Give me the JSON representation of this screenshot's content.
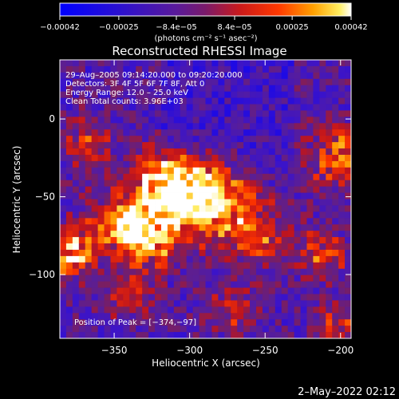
{
  "chart_data": {
    "type": "heatmap",
    "title": "Reconstructed RHESSI Image",
    "xlabel": "Heliocentric X (arcsec)",
    "ylabel": "Heliocentric Y (arcsec)",
    "xlim": [
      -386,
      -193
    ],
    "ylim": [
      -141,
      38
    ],
    "xticks": [
      -350,
      -300,
      -250,
      -200
    ],
    "yticks": [
      0,
      -50,
      -100
    ],
    "xtick_labels": [
      "−350",
      "−300",
      "−250",
      "−200"
    ],
    "ytick_labels": [
      "0",
      "−50",
      "−100"
    ],
    "colorbar": {
      "range": [
        -0.00042,
        0.00042
      ],
      "ticks": [
        -0.00042,
        -0.00025,
        -8.4e-05,
        8.4e-05,
        0.00025,
        0.00042
      ],
      "tick_labels": [
        "−0.00042",
        "−0.00025",
        "−8.4e−05",
        "8.4e−05",
        "0.00025",
        "0.00042"
      ],
      "unit_label": "(photons cm⁻² s⁻¹ asec⁻²)"
    },
    "annotations": [
      "29–Aug–2005 09:14:20.000 to 09:20:20.000",
      "Detectors: 3F 4F 5F 6F 7F 8F, Att 0",
      "Energy Range: 12.0 – 25.0 keV",
      "Clean    Total counts: 3.96E+03"
    ],
    "peak_label": "Position of Peak = [−374,−97]",
    "peak_position": [
      -374,
      -97
    ],
    "footer": "2–May–2022 02:12"
  }
}
